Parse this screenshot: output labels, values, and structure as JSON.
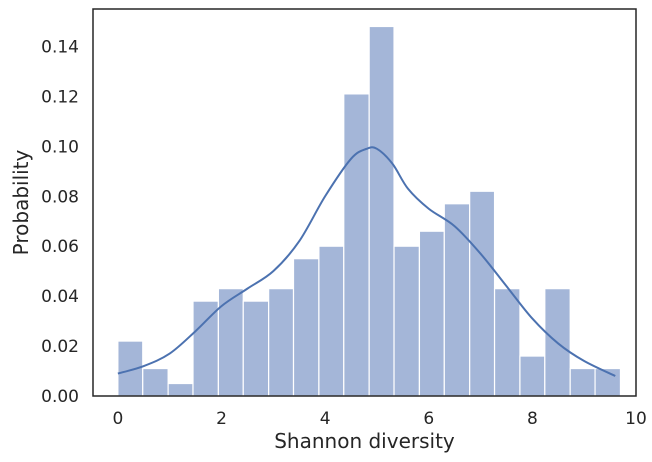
{
  "chart_data": {
    "type": "bar",
    "title": "",
    "xlabel": "Shannon diversity",
    "ylabel": "Probability",
    "xlim": [
      -0.48,
      10.0
    ],
    "ylim": [
      0.0,
      0.155
    ],
    "xticks": [
      0,
      2,
      4,
      6,
      8,
      10
    ],
    "xtick_labels": [
      "0",
      "2",
      "4",
      "6",
      "8",
      "10"
    ],
    "yticks": [
      0.0,
      0.02,
      0.04,
      0.06,
      0.08,
      0.1,
      0.12,
      0.14
    ],
    "ytick_labels": [
      "0.00",
      "0.02",
      "0.04",
      "0.06",
      "0.08",
      "0.10",
      "0.12",
      "0.14"
    ],
    "grid": false,
    "legend": "none",
    "bar_color": "#a4b6d8",
    "line_color": "#4c72b0",
    "bins": [
      {
        "x0": 0.0,
        "x1": 0.48,
        "value": 0.022
      },
      {
        "x0": 0.48,
        "x1": 0.97,
        "value": 0.011
      },
      {
        "x0": 0.97,
        "x1": 1.45,
        "value": 0.005
      },
      {
        "x0": 1.45,
        "x1": 1.94,
        "value": 0.038
      },
      {
        "x0": 1.94,
        "x1": 2.42,
        "value": 0.043
      },
      {
        "x0": 2.42,
        "x1": 2.91,
        "value": 0.038
      },
      {
        "x0": 2.91,
        "x1": 3.39,
        "value": 0.043
      },
      {
        "x0": 3.39,
        "x1": 3.88,
        "value": 0.055
      },
      {
        "x0": 3.88,
        "x1": 4.36,
        "value": 0.06
      },
      {
        "x0": 4.36,
        "x1": 4.85,
        "value": 0.121
      },
      {
        "x0": 4.85,
        "x1": 5.33,
        "value": 0.148
      },
      {
        "x0": 5.33,
        "x1": 5.82,
        "value": 0.06
      },
      {
        "x0": 5.82,
        "x1": 6.3,
        "value": 0.066
      },
      {
        "x0": 6.3,
        "x1": 6.79,
        "value": 0.077
      },
      {
        "x0": 6.79,
        "x1": 7.27,
        "value": 0.082
      },
      {
        "x0": 7.27,
        "x1": 7.76,
        "value": 0.043
      },
      {
        "x0": 7.76,
        "x1": 8.24,
        "value": 0.016
      },
      {
        "x0": 8.24,
        "x1": 8.73,
        "value": 0.043
      },
      {
        "x0": 8.73,
        "x1": 9.21,
        "value": 0.011
      },
      {
        "x0": 9.21,
        "x1": 9.7,
        "value": 0.011
      }
    ],
    "kde": {
      "x": [
        0.0,
        0.5,
        1.0,
        1.5,
        2.0,
        2.5,
        3.0,
        3.5,
        4.0,
        4.5,
        4.8,
        5.0,
        5.3,
        5.6,
        6.0,
        6.5,
        7.0,
        7.5,
        8.0,
        8.5,
        9.0,
        9.6
      ],
      "y": [
        0.009,
        0.012,
        0.017,
        0.026,
        0.036,
        0.043,
        0.05,
        0.062,
        0.08,
        0.095,
        0.099,
        0.099,
        0.093,
        0.083,
        0.075,
        0.068,
        0.057,
        0.044,
        0.031,
        0.021,
        0.014,
        0.008
      ]
    }
  }
}
